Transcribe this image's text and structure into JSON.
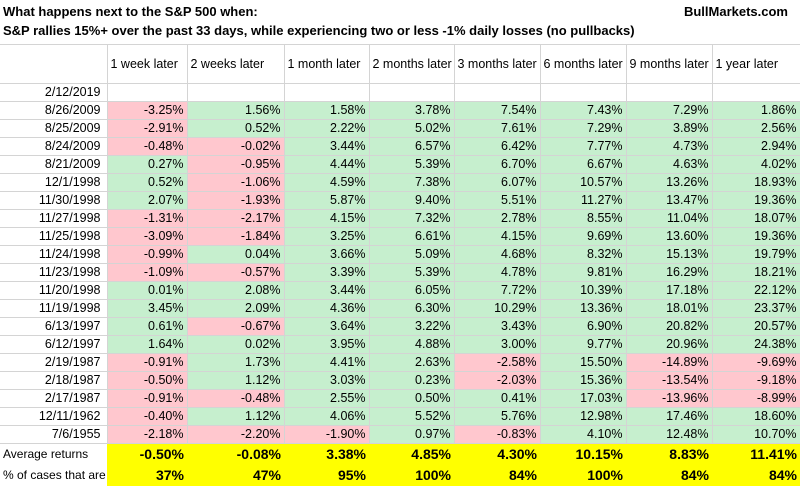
{
  "title_line1": "What happens next to the S&P 500 when:",
  "title_line2": "S&P rallies 15%+ over the past 33 days, while experiencing two or less -1% daily losses (no pullbacks)",
  "brand": "BullMarkets.com",
  "columns": [
    "1 week later",
    "2 weeks later",
    "1 month later",
    "2 months later",
    "3 months later",
    "6 months later",
    "9 months later",
    "1 year later"
  ],
  "rows": [
    {
      "date": "2/12/2019",
      "values": [
        "",
        "",
        "",
        "",
        "",
        "",
        "",
        ""
      ]
    },
    {
      "date": "8/26/2009",
      "values": [
        "-3.25%",
        "1.56%",
        "1.58%",
        "3.78%",
        "7.54%",
        "7.43%",
        "7.29%",
        "1.86%"
      ]
    },
    {
      "date": "8/25/2009",
      "values": [
        "-2.91%",
        "0.52%",
        "2.22%",
        "5.02%",
        "7.61%",
        "7.29%",
        "3.89%",
        "2.56%"
      ]
    },
    {
      "date": "8/24/2009",
      "values": [
        "-0.48%",
        "-0.02%",
        "3.44%",
        "6.57%",
        "6.42%",
        "7.77%",
        "4.73%",
        "2.94%"
      ]
    },
    {
      "date": "8/21/2009",
      "values": [
        "0.27%",
        "-0.95%",
        "4.44%",
        "5.39%",
        "6.70%",
        "6.67%",
        "4.63%",
        "4.02%"
      ]
    },
    {
      "date": "12/1/1998",
      "values": [
        "0.52%",
        "-1.06%",
        "4.59%",
        "7.38%",
        "6.07%",
        "10.57%",
        "13.26%",
        "18.93%"
      ]
    },
    {
      "date": "11/30/1998",
      "values": [
        "2.07%",
        "-1.93%",
        "5.87%",
        "9.40%",
        "5.51%",
        "11.27%",
        "13.47%",
        "19.36%"
      ]
    },
    {
      "date": "11/27/1998",
      "values": [
        "-1.31%",
        "-2.17%",
        "4.15%",
        "7.32%",
        "2.78%",
        "8.55%",
        "11.04%",
        "18.07%"
      ]
    },
    {
      "date": "11/25/1998",
      "values": [
        "-3.09%",
        "-1.84%",
        "3.25%",
        "6.61%",
        "4.15%",
        "9.69%",
        "13.60%",
        "19.36%"
      ]
    },
    {
      "date": "11/24/1998",
      "values": [
        "-0.99%",
        "0.04%",
        "3.66%",
        "5.09%",
        "4.68%",
        "8.32%",
        "15.13%",
        "19.79%"
      ]
    },
    {
      "date": "11/23/1998",
      "values": [
        "-1.09%",
        "-0.57%",
        "3.39%",
        "5.39%",
        "4.78%",
        "9.81%",
        "16.29%",
        "18.21%"
      ]
    },
    {
      "date": "11/20/1998",
      "values": [
        "0.01%",
        "2.08%",
        "3.44%",
        "6.05%",
        "7.72%",
        "10.39%",
        "17.18%",
        "22.12%"
      ]
    },
    {
      "date": "11/19/1998",
      "values": [
        "3.45%",
        "2.09%",
        "4.36%",
        "6.30%",
        "10.29%",
        "13.36%",
        "18.01%",
        "23.37%"
      ]
    },
    {
      "date": "6/13/1997",
      "values": [
        "0.61%",
        "-0.67%",
        "3.64%",
        "3.22%",
        "3.43%",
        "6.90%",
        "20.82%",
        "20.57%"
      ]
    },
    {
      "date": "6/12/1997",
      "values": [
        "1.64%",
        "0.02%",
        "3.95%",
        "4.88%",
        "3.00%",
        "9.77%",
        "20.96%",
        "24.38%"
      ]
    },
    {
      "date": "2/19/1987",
      "values": [
        "-0.91%",
        "1.73%",
        "4.41%",
        "2.63%",
        "-2.58%",
        "15.50%",
        "-14.89%",
        "-9.69%"
      ]
    },
    {
      "date": "2/18/1987",
      "values": [
        "-0.50%",
        "1.12%",
        "3.03%",
        "0.23%",
        "-2.03%",
        "15.36%",
        "-13.54%",
        "-9.18%"
      ]
    },
    {
      "date": "2/17/1987",
      "values": [
        "-0.91%",
        "-0.48%",
        "2.55%",
        "0.50%",
        "0.41%",
        "17.03%",
        "-13.96%",
        "-8.99%"
      ]
    },
    {
      "date": "12/11/1962",
      "values": [
        "-0.40%",
        "1.12%",
        "4.06%",
        "5.52%",
        "5.76%",
        "12.98%",
        "17.46%",
        "18.60%"
      ]
    },
    {
      "date": "7/6/1955",
      "values": [
        "-2.18%",
        "-2.20%",
        "-1.90%",
        "0.97%",
        "-0.83%",
        "4.10%",
        "12.48%",
        "10.70%"
      ]
    }
  ],
  "summary": [
    {
      "label": "Average returns",
      "values": [
        "-0.50%",
        "-0.08%",
        "3.38%",
        "4.85%",
        "4.30%",
        "10.15%",
        "8.83%",
        "11.41%"
      ]
    },
    {
      "label": "% of cases that are positive",
      "values": [
        "37%",
        "47%",
        "95%",
        "100%",
        "84%",
        "100%",
        "84%",
        "84%"
      ]
    }
  ],
  "colors": {
    "positive_fill": "#c6efce",
    "negative_fill": "#ffc7ce",
    "summary_fill": "#ffff00"
  }
}
